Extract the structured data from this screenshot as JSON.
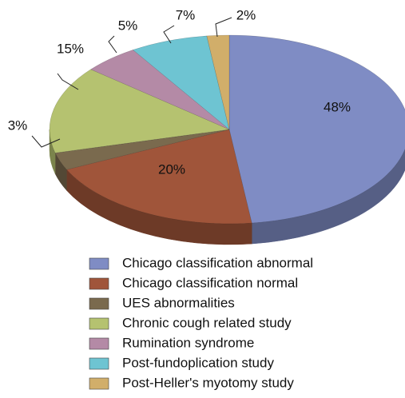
{
  "chart_data": {
    "type": "pie",
    "categories": [
      "Chicago classification abnormal",
      "Chicago classification normal",
      "UES abnormalities",
      "Chronic cough related study",
      "Rumination syndrome",
      "Post-fundoplication study",
      "Post-Heller's myotomy study"
    ],
    "values": [
      48,
      20,
      3,
      15,
      5,
      7,
      2
    ],
    "value_labels": [
      "48%",
      "20%",
      "3%",
      "15%",
      "5%",
      "7%",
      "2%"
    ],
    "colors": [
      "#7f8cc4",
      "#a0553a",
      "#7a6a4e",
      "#b5c270",
      "#b48aa6",
      "#6ec4d2",
      "#d1ae6a"
    ]
  }
}
